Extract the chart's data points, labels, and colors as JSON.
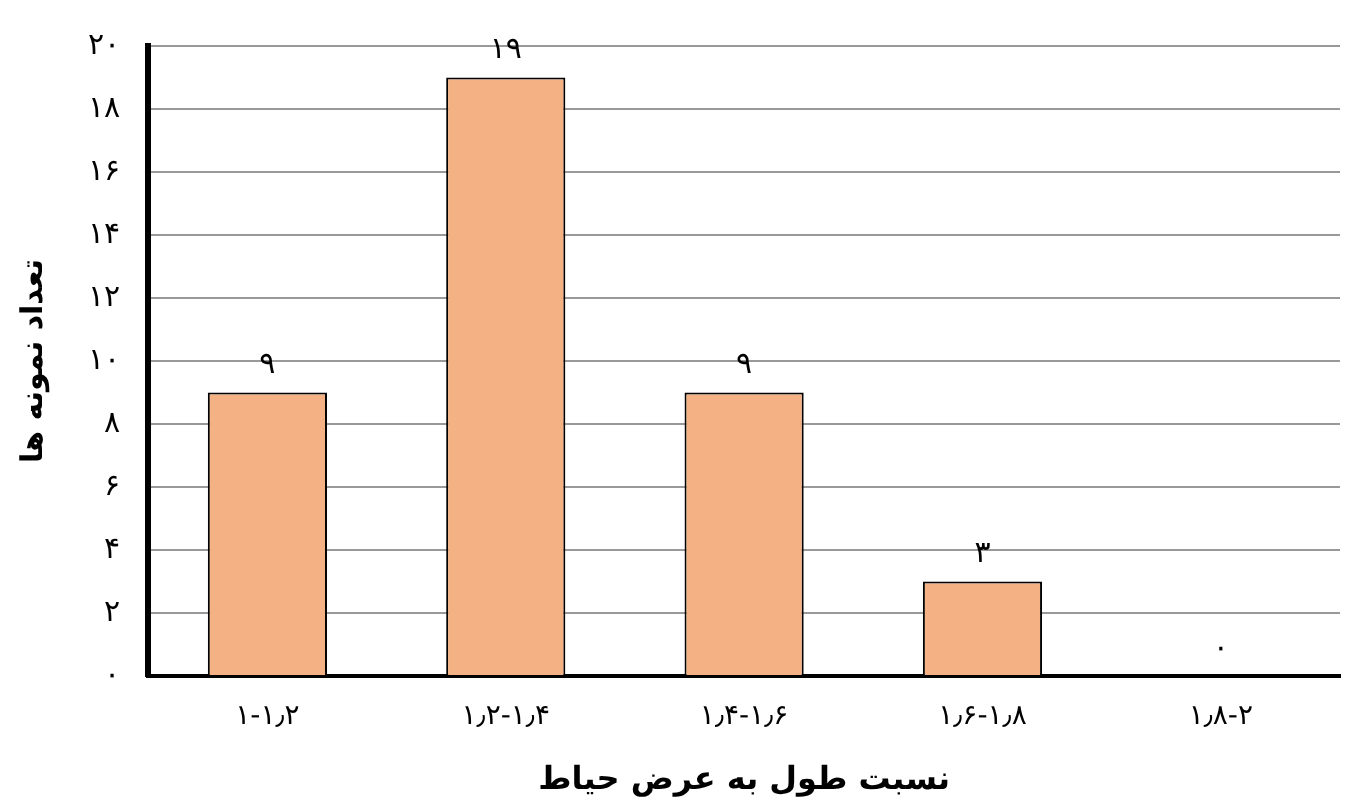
{
  "chart_data": {
    "type": "bar",
    "xlabel": "نسبت طول به عرض حیاط",
    "ylabel": "تعداد نمونه ها",
    "categories": [
      "۱-۱٫۲",
      "۱٫۲-۱٫۴",
      "۱٫۴-۱٫۶",
      "۱٫۶-۱٫۸",
      "۱٫۸-۲"
    ],
    "values": [
      9,
      19,
      9,
      3,
      0
    ],
    "color": "#f4b183",
    "value_labels": [
      "۹",
      "۱۹",
      "۹",
      "۳",
      "۰"
    ],
    "ylim": [
      0,
      20
    ],
    "yticks": [
      {
        "value": 0,
        "label": "۰"
      },
      {
        "value": 2,
        "label": "۲"
      },
      {
        "value": 4,
        "label": "۴"
      },
      {
        "value": 6,
        "label": "۶"
      },
      {
        "value": 8,
        "label": "۸"
      },
      {
        "value": 10,
        "label": "۱۰"
      },
      {
        "value": 12,
        "label": "۱۲"
      },
      {
        "value": 14,
        "label": "۱۴"
      },
      {
        "value": 16,
        "label": "۱۶"
      },
      {
        "value": 18,
        "label": "۱۸"
      },
      {
        "value": 20,
        "label": "۲۰"
      }
    ],
    "grid": "y"
  }
}
